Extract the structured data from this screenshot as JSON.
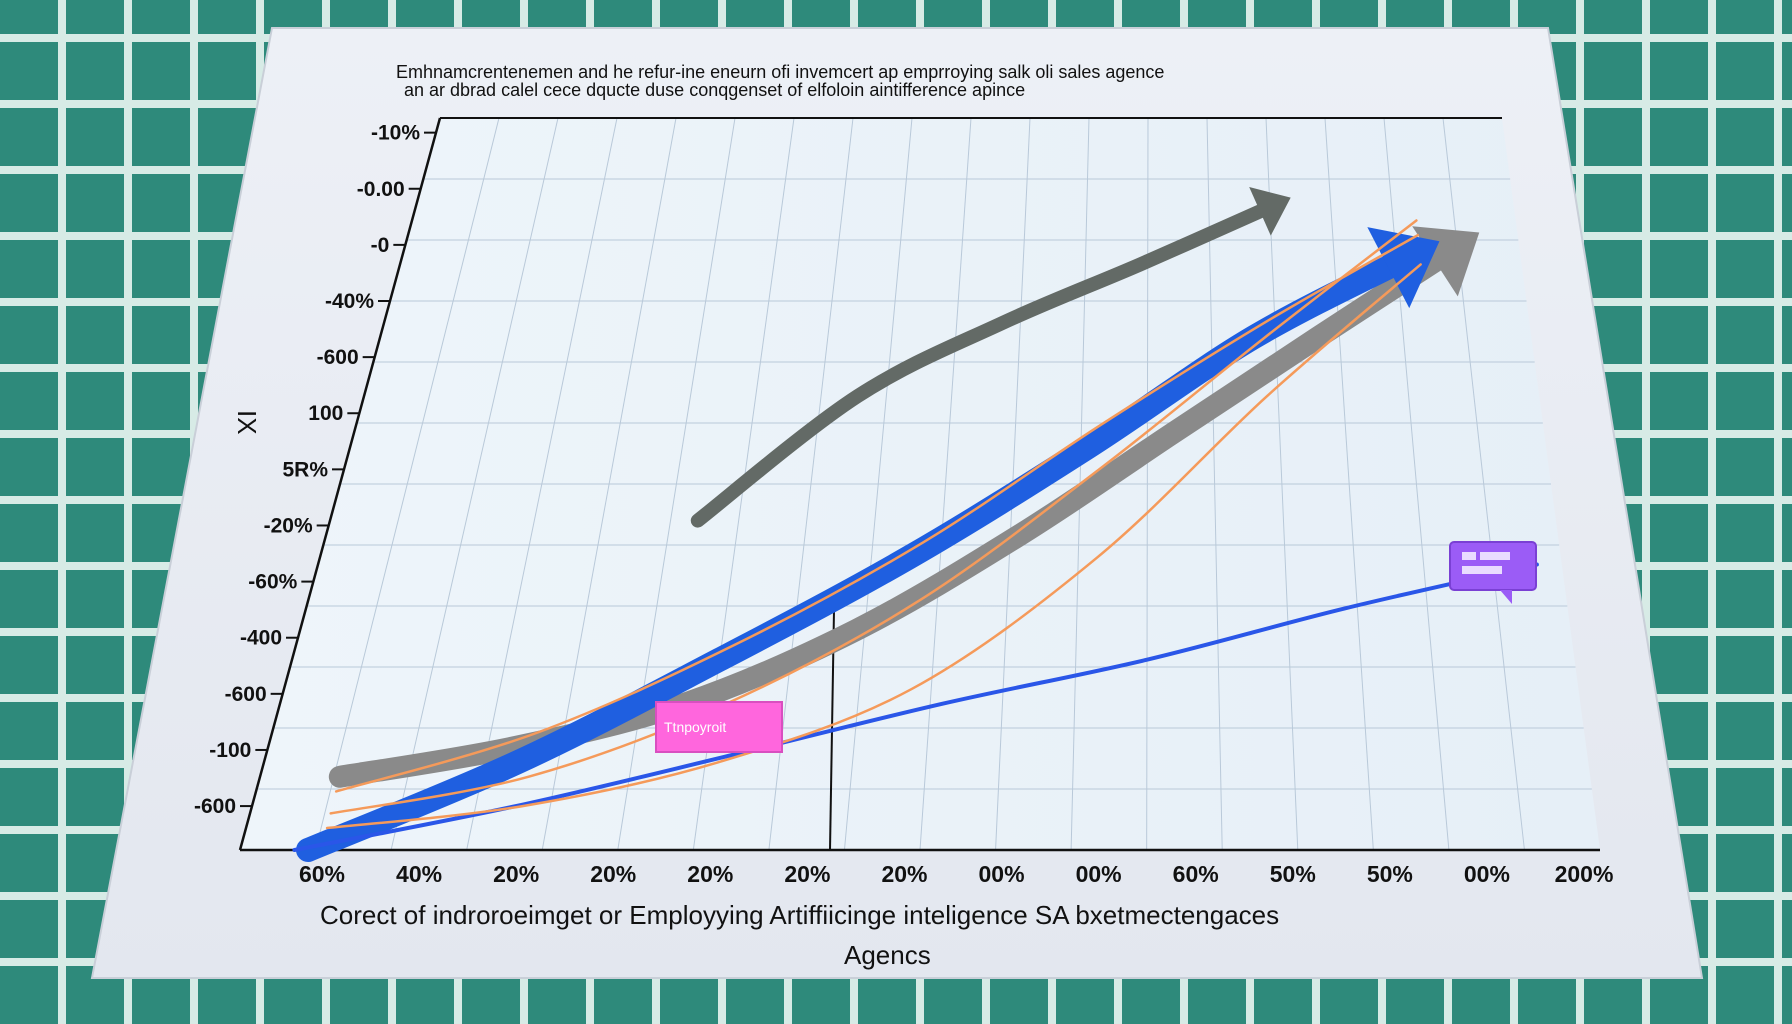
{
  "chart_data": {
    "type": "line",
    "title_line1": "Emhnamcrentenemen and he refur-ine eneurn ofi invemcert ap emprroying salk oli sales agence",
    "title_line2": "an ar dbrad calel cece dqucte duse conqgenset of elfoloin aintifference apince",
    "ylabel": "IX",
    "ytick_labels": [
      "-10%",
      "-0.00",
      "-0",
      "-40%",
      "-600",
      "100",
      "5R%",
      "-20%",
      "-60%",
      "-400",
      "-600",
      "-100",
      "-600"
    ],
    "xtick_labels": [
      "60%",
      "40%",
      "20%",
      "20%",
      "20%",
      "20%",
      "20%",
      "00%",
      "00%",
      "60%",
      "50%",
      "50%",
      "00%",
      "200%"
    ],
    "xlabel_line1": "Corect of  indroroeimget  or Employying Artiffiicinge inteligence SA bxetmectengaces",
    "xlabel_line2": "Agencs",
    "annotations": [
      {
        "text": "Ttnpoyroit",
        "color": "#ff66dd"
      },
      {
        "text": "",
        "color": "#9b5cf6"
      }
    ],
    "series": [
      {
        "color": "#8a8a8a",
        "values": [
          10,
          14,
          20,
          30,
          43,
          57,
          70,
          82
        ]
      },
      {
        "color": "#636a66",
        "values": [
          45,
          62,
          72,
          80,
          88
        ]
      },
      {
        "color": "#1f5fe0",
        "values": [
          0,
          12,
          26,
          40,
          55,
          70,
          81
        ]
      },
      {
        "color": "#2a56e8",
        "values": [
          0,
          6,
          13,
          20,
          26,
          33,
          39
        ]
      },
      {
        "color": "#f59a5a",
        "values": [
          8,
          16,
          28,
          42,
          58,
          72,
          84
        ]
      },
      {
        "color": "#f59a5a",
        "values": [
          5,
          10,
          20,
          34,
          52,
          70,
          86
        ]
      },
      {
        "color": "#f59a5a",
        "values": [
          3,
          6,
          12,
          22,
          40,
          62,
          80
        ]
      }
    ],
    "ylim": [
      0,
      100
    ],
    "grid": true
  }
}
